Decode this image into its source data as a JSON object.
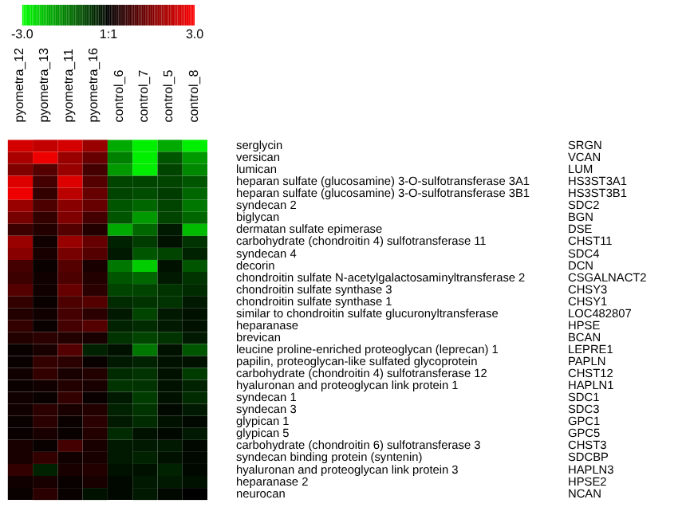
{
  "chart_data": {
    "type": "heatmap",
    "categories": [
      "pyometra_12",
      "pyometra_13",
      "pyometra_11",
      "pyometra_16",
      "control_6",
      "control_7",
      "control_5",
      "control_8"
    ],
    "y_categories": [
      "serglycin",
      "versican",
      "lumican",
      "heparan sulfate (glucosamine) 3-O-sulfotransferase 3A1",
      "heparan sulfate (glucosamine) 3-O-sulfotransferase 3B1",
      "syndecan 2",
      "biglycan",
      "dermatan sulfate epimerase",
      "carbohydrate (chondroitin 4) sulfotransferase 11",
      "syndecan 4",
      "decorin",
      "chondroitin sulfate N-acetylgalactosaminyltransferase 2",
      "chondroitin sulfate synthase 3",
      "chondroitin sulfate synthase 1",
      "similar to chondroitin sulfate glucuronyltransferase",
      "heparanase",
      "brevican",
      "leucine proline-enriched proteoglycan (leprecan) 1",
      "papilin, proteoglycan-like sulfated glycoprotein",
      "carbohydrate (chondroitin 4) sulfotransferase 12",
      "hyaluronan and proteoglycan link protein 1",
      "syndecan 1",
      "syndecan 3",
      "glypican 1",
      "glypican 5",
      "carbohydrate (chondroitin 6) sulfotransferase 3",
      "syndecan binding protein (syntenin)",
      "hyaluronan and proteoglycan link protein 3",
      "heparanase 2",
      "neurocan"
    ],
    "y2_categories": [
      "SRGN",
      "VCAN",
      "LUM",
      "HS3ST3A1",
      "HS3ST3B1",
      "SDC2",
      "BGN",
      "DSE",
      "CHST11",
      "SDC4",
      "DCN",
      "CSGALNACT2",
      "CHSY3",
      "CHSY1",
      "LOC482807",
      "HPSE",
      "BCAN",
      "LEPRE1",
      "PAPLN",
      "CHST12",
      "HAPLN1",
      "SDC1",
      "SDC3",
      "GPC1",
      "GPC5",
      "CHST3",
      "SDCBP",
      "HAPLN3",
      "HPSE2",
      "NCAN"
    ],
    "cells": [
      [
        2.5,
        2.3,
        2.5,
        1.8,
        -2.0,
        -2.8,
        -2.0,
        -2.8
      ],
      [
        2.0,
        2.8,
        1.8,
        1.2,
        -1.5,
        -2.8,
        -1.0,
        -1.8
      ],
      [
        1.5,
        1.0,
        1.8,
        0.8,
        -1.8,
        -2.8,
        -0.8,
        -1.6
      ],
      [
        2.6,
        0.8,
        2.6,
        1.0,
        -0.8,
        -0.8,
        -0.8,
        -1.0
      ],
      [
        2.8,
        0.6,
        2.2,
        1.2,
        -0.8,
        -0.9,
        -0.7,
        -1.2
      ],
      [
        1.8,
        0.9,
        1.6,
        1.2,
        -1.0,
        -1.2,
        -0.8,
        -1.4
      ],
      [
        1.4,
        0.6,
        1.5,
        0.8,
        -1.0,
        -1.8,
        -0.8,
        -1.2
      ],
      [
        0.7,
        0.4,
        1.0,
        0.4,
        -2.0,
        -1.2,
        -0.3,
        -2.2
      ],
      [
        1.8,
        0.2,
        1.8,
        1.2,
        -0.4,
        -0.7,
        -0.2,
        -0.6
      ],
      [
        1.6,
        0.3,
        1.4,
        1.0,
        -0.3,
        -1.0,
        -0.8,
        -0.4
      ],
      [
        0.8,
        0.1,
        1.0,
        0.3,
        -1.4,
        -2.4,
        -0.2,
        -1.0
      ],
      [
        0.7,
        0.2,
        0.9,
        0.4,
        -1.0,
        -1.2,
        -0.3,
        -0.6
      ],
      [
        1.0,
        0.2,
        1.2,
        0.5,
        -0.8,
        -0.8,
        -0.6,
        -0.5
      ],
      [
        0.6,
        0.1,
        0.9,
        1.0,
        -0.5,
        -0.6,
        -0.6,
        -0.3
      ],
      [
        0.4,
        0.2,
        0.8,
        0.5,
        -0.3,
        -0.8,
        -0.3,
        -0.2
      ],
      [
        0.6,
        0.1,
        0.8,
        1.0,
        -0.4,
        -0.5,
        -0.3,
        -0.2
      ],
      [
        0.4,
        0.5,
        0.4,
        0.3,
        -0.6,
        -0.8,
        -0.6,
        -0.3
      ],
      [
        0.1,
        0.3,
        1.0,
        -0.4,
        -0.2,
        -1.4,
        -0.2,
        -1.0
      ],
      [
        0.1,
        0.6,
        0.5,
        0.1,
        -0.3,
        -0.4,
        -0.2,
        -0.2
      ],
      [
        0.2,
        0.6,
        0.3,
        0.4,
        -0.5,
        -0.6,
        -0.2,
        -0.7
      ],
      [
        0.1,
        0.2,
        0.4,
        0.3,
        -0.6,
        -0.6,
        -0.2,
        -0.4
      ],
      [
        0.2,
        0.1,
        0.6,
        0.1,
        -0.3,
        -0.7,
        -0.2,
        -0.5
      ],
      [
        0.2,
        0.5,
        0.3,
        0.4,
        -0.4,
        -0.6,
        -0.1,
        -0.3
      ],
      [
        0.1,
        0.5,
        0.1,
        0.5,
        -0.3,
        -0.5,
        -0.2,
        -0.1
      ],
      [
        0.1,
        0.3,
        0.1,
        0.4,
        -0.5,
        -0.2,
        -0.1,
        -0.3
      ],
      [
        0.3,
        0.1,
        0.8,
        0.3,
        -0.3,
        -0.3,
        -0.3,
        -0.1
      ],
      [
        0.3,
        0.6,
        0.2,
        0.3,
        -0.3,
        -0.4,
        -0.2,
        -0.1
      ],
      [
        0.6,
        -0.4,
        0.3,
        0.4,
        -0.2,
        -0.2,
        -0.4,
        -0.1
      ],
      [
        0.2,
        0.3,
        0.1,
        0.3,
        -0.1,
        -0.3,
        -0.3,
        -0.2
      ],
      [
        0.1,
        0.5,
        0.1,
        -0.2,
        -0.1,
        -0.3,
        -0.1,
        0.0
      ]
    ],
    "clim": [
      -3.0,
      3.0
    ],
    "cticks": [
      {
        "value": -3.0,
        "label": "-3.0"
      },
      {
        "value": 0,
        "label": "1:1"
      },
      {
        "value": 3.0,
        "label": "3.0"
      }
    ]
  }
}
